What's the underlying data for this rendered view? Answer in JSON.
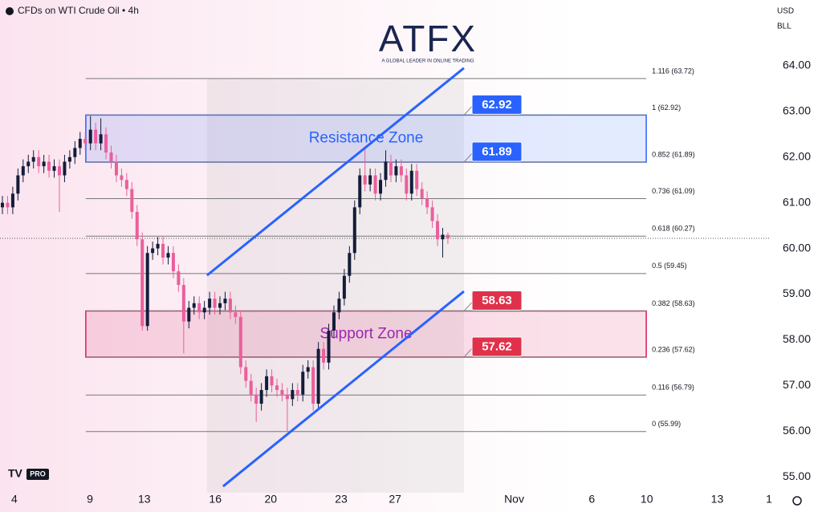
{
  "chart_data": {
    "type": "candlestick",
    "title": "CFDs on WTI Crude Oil • 4h",
    "currency": "USD",
    "unit": "BLL",
    "brand": "ATFX",
    "brand_tagline": "A GLOBAL LEADER IN ONLINE TRADING",
    "badge": "PRO",
    "up_color": "#131c3a",
    "down_color": "#ea5f9c",
    "open": [
      60.9,
      61.0,
      60.9,
      61.2,
      61.6,
      61.8,
      61.9,
      62.0,
      61.8,
      61.9,
      61.7,
      61.8,
      61.6,
      61.9,
      62.0,
      62.2,
      62.4,
      62.3,
      62.6,
      62.3,
      62.5,
      62.1,
      61.9,
      61.6,
      61.5,
      61.3,
      60.8,
      60.2,
      58.3,
      59.9,
      60.0,
      60.1,
      59.8,
      59.9,
      59.5,
      59.2,
      58.4,
      58.7,
      58.8,
      58.6,
      58.7,
      58.9,
      58.7,
      58.8,
      58.9,
      58.6,
      58.5,
      57.4,
      57.1,
      56.8,
      56.6,
      56.9,
      57.2,
      57.0,
      56.9,
      56.8,
      56.7,
      56.9,
      56.8,
      57.3,
      57.4,
      56.6,
      57.8,
      57.5,
      58.2,
      58.6,
      58.9,
      59.4,
      59.9,
      60.9,
      61.6,
      61.4,
      61.6,
      61.2,
      61.5,
      61.9,
      61.6,
      61.8,
      61.6,
      61.2,
      61.7,
      61.3,
      61.1,
      60.9,
      60.6,
      60.2,
      60.3
    ],
    "high": [
      61.15,
      61.15,
      61.35,
      61.75,
      61.95,
      62.05,
      62.15,
      62.15,
      62.05,
      62.05,
      61.95,
      61.95,
      62.05,
      62.15,
      62.35,
      62.55,
      62.55,
      62.9,
      62.75,
      62.85,
      62.65,
      62.25,
      62.05,
      61.75,
      61.65,
      61.45,
      60.95,
      60.35,
      60.05,
      60.15,
      60.25,
      60.25,
      60.05,
      60.05,
      59.65,
      59.35,
      58.85,
      58.95,
      58.95,
      58.85,
      59.05,
      59.05,
      58.95,
      59.05,
      59.05,
      58.75,
      58.65,
      57.55,
      57.25,
      56.95,
      57.05,
      57.35,
      57.35,
      57.15,
      57.05,
      56.95,
      57.05,
      57.05,
      57.45,
      57.55,
      57.55,
      57.95,
      57.95,
      58.35,
      58.75,
      59.05,
      59.55,
      60.05,
      61.05,
      61.75,
      62.2,
      61.75,
      61.75,
      61.65,
      62.15,
      62.05,
      61.95,
      61.95,
      61.75,
      61.85,
      61.85,
      61.45,
      61.25,
      61.05,
      60.75,
      60.45,
      60.35
    ],
    "low": [
      60.75,
      60.75,
      60.75,
      61.05,
      61.45,
      61.65,
      61.75,
      61.65,
      61.65,
      61.55,
      61.55,
      60.8,
      61.45,
      61.75,
      61.85,
      62.05,
      62.15,
      62.15,
      62.15,
      62.15,
      61.95,
      61.75,
      61.45,
      61.35,
      61.15,
      60.65,
      60.05,
      58.2,
      58.2,
      59.75,
      59.85,
      59.65,
      59.65,
      59.35,
      59.05,
      57.7,
      58.25,
      58.55,
      58.45,
      58.45,
      58.55,
      58.55,
      58.55,
      58.65,
      58.45,
      58.35,
      57.25,
      56.95,
      56.65,
      56.2,
      56.45,
      56.75,
      56.85,
      56.75,
      56.65,
      56.0,
      56.55,
      56.65,
      56.65,
      57.15,
      56.45,
      56.45,
      57.35,
      57.35,
      58.05,
      58.45,
      58.75,
      59.25,
      59.75,
      60.75,
      61.25,
      61.25,
      61.05,
      61.05,
      61.35,
      61.45,
      61.45,
      61.45,
      61.05,
      61.05,
      61.15,
      60.95,
      60.75,
      60.45,
      60.05,
      59.8,
      60.1
    ],
    "close": [
      61.0,
      60.9,
      61.2,
      61.6,
      61.8,
      61.9,
      62.0,
      61.8,
      61.9,
      61.7,
      61.8,
      61.6,
      61.9,
      62.0,
      62.2,
      62.4,
      62.3,
      62.6,
      62.3,
      62.5,
      62.1,
      61.9,
      61.6,
      61.5,
      61.3,
      60.8,
      60.2,
      58.3,
      59.9,
      60.0,
      60.1,
      59.8,
      59.9,
      59.5,
      59.2,
      58.4,
      58.7,
      58.8,
      58.6,
      58.7,
      58.9,
      58.7,
      58.8,
      58.9,
      58.6,
      58.5,
      57.4,
      57.1,
      56.8,
      56.6,
      56.9,
      57.2,
      57.0,
      56.9,
      56.8,
      56.7,
      56.9,
      56.8,
      57.3,
      57.4,
      56.6,
      57.8,
      57.5,
      58.2,
      58.6,
      58.9,
      59.4,
      59.9,
      60.9,
      61.6,
      61.4,
      61.6,
      61.2,
      61.5,
      61.9,
      61.6,
      61.8,
      61.6,
      61.2,
      61.7,
      61.3,
      61.1,
      60.9,
      60.6,
      60.2,
      60.3,
      60.22
    ],
    "xlim": [
      0,
      148
    ],
    "xticks": [
      {
        "value": 2.3,
        "label": "4"
      },
      {
        "value": 16.9,
        "label": "9"
      },
      {
        "value": 27.4,
        "label": "13"
      },
      {
        "value": 41.1,
        "label": "16"
      },
      {
        "value": 51.8,
        "label": "20"
      },
      {
        "value": 65.4,
        "label": "23"
      },
      {
        "value": 75.8,
        "label": "27"
      },
      {
        "value": 98.8,
        "label": "Nov"
      },
      {
        "value": 113.8,
        "label": "6"
      },
      {
        "value": 124.4,
        "label": "10"
      },
      {
        "value": 138,
        "label": "13"
      },
      {
        "value": 148,
        "label": "1"
      }
    ],
    "ylim": [
      54.65,
      65.44
    ],
    "yticks": [
      {
        "value": 55,
        "label": "55.00"
      },
      {
        "value": 56,
        "label": "56.00"
      },
      {
        "value": 57,
        "label": "57.00"
      },
      {
        "value": 58,
        "label": "58.00"
      },
      {
        "value": 59,
        "label": "59.00"
      },
      {
        "value": 60,
        "label": "60.00"
      },
      {
        "value": 61,
        "label": "61.00"
      },
      {
        "value": 62,
        "label": "62.00"
      },
      {
        "value": 63,
        "label": "63.00"
      },
      {
        "value": 64,
        "label": "64.00"
      }
    ],
    "fib_x": [
      16.1,
      124.3
    ],
    "fib_levels": [
      {
        "value": 63.72,
        "label": "1.116 (63.72)"
      },
      {
        "value": 62.92,
        "label": "1 (62.92)"
      },
      {
        "value": 61.89,
        "label": "0.852 (61.89)"
      },
      {
        "value": 61.09,
        "label": "0.736 (61.09)"
      },
      {
        "value": 60.27,
        "label": "0.618 (60.27)"
      },
      {
        "value": 59.45,
        "label": "0.5 (59.45)"
      },
      {
        "value": 58.63,
        "label": "0.382 (58.63)"
      },
      {
        "value": 57.62,
        "label": "0.236 (57.62)"
      },
      {
        "value": 56.79,
        "label": "0.116 (56.79)"
      },
      {
        "value": 55.99,
        "label": "0 (55.99)"
      }
    ],
    "zones": [
      {
        "name": "Resistance Zone",
        "range": [
          61.89,
          62.92
        ],
        "color": "#2962ff",
        "text_color": "#2962ff"
      },
      {
        "name": "Support Zone",
        "range": [
          57.62,
          58.63
        ],
        "color": "#d81b60",
        "text_color": "#9c27b0"
      }
    ],
    "channel": [
      {
        "x": [
          39.5,
          89.1
        ],
        "y": [
          59.41,
          63.95
        ]
      },
      {
        "x": [
          42.6,
          89.1
        ],
        "y": [
          54.79,
          59.06
        ]
      }
    ],
    "price_tags": [
      {
        "value": 62.92,
        "color": "#2962ff"
      },
      {
        "value": 61.89,
        "color": "#2962ff"
      },
      {
        "value": 58.63,
        "color": "#e0314b"
      },
      {
        "value": 57.62,
        "color": "#e0314b"
      }
    ]
  }
}
